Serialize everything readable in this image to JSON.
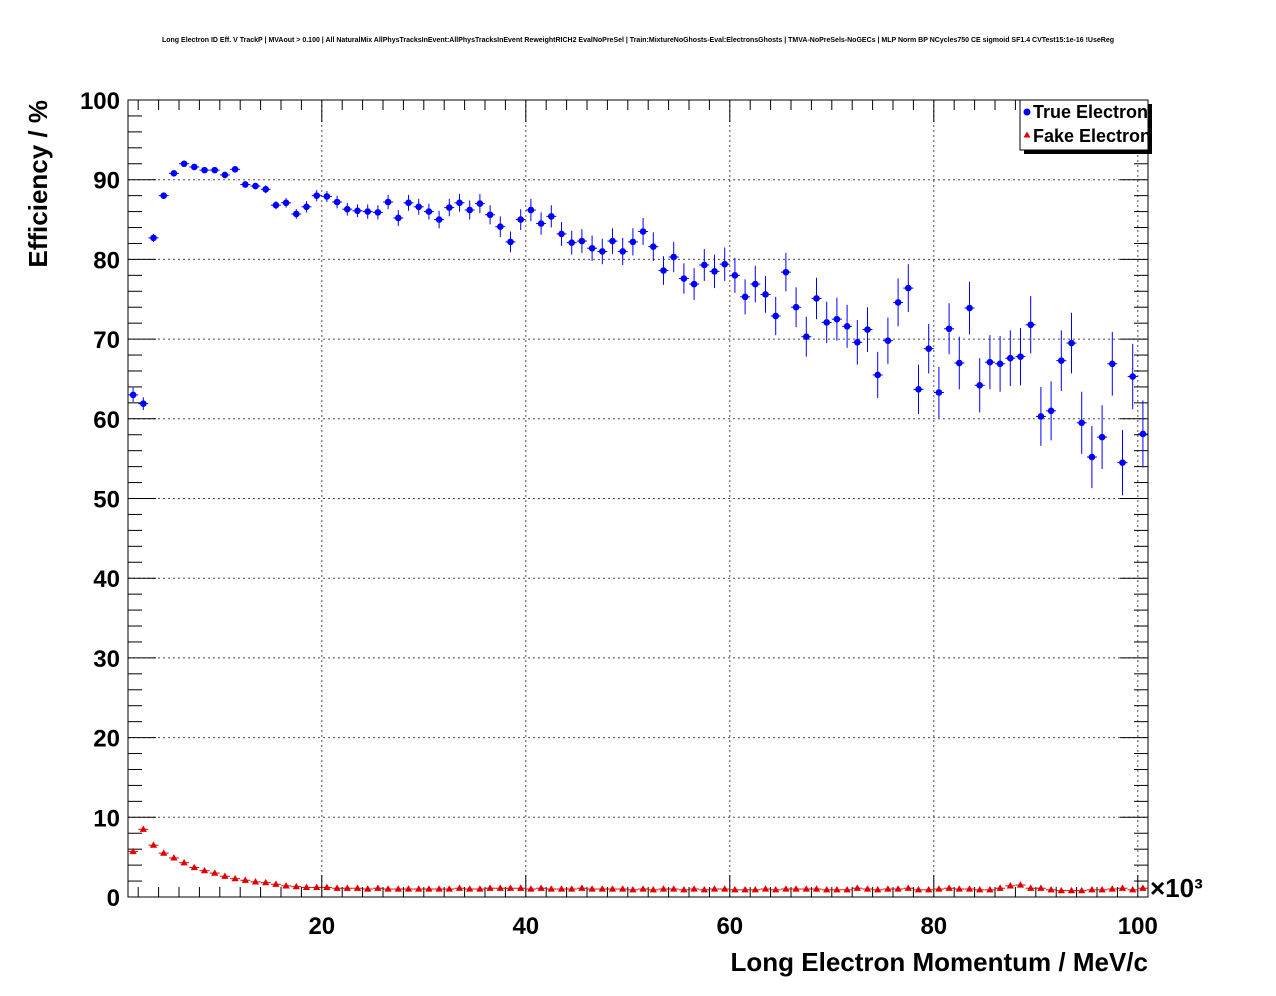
{
  "chart_data": {
    "type": "scatter",
    "title": "Long Electron ID Eff. V TrackP | MVAout > 0.100 | All NaturalMix AllPhysTracksInEvent:AllPhysTracksInEvent ReweightRICH2 EvalNoPreSel | Train:MixtureNoGhosts-Eval:ElectronsGhosts | TMVA-NoPreSels-NoGECs | MLP Norm BP NCycles750 CE sigmoid SF1.4 CVTest15:1e-16 !UseReg",
    "xlabel": "Long Electron Momentum / MeV/c",
    "ylabel": "Efficiency / %",
    "x_multiplier": "×10³",
    "xlim": [
      1,
      101
    ],
    "ylim": [
      0,
      100
    ],
    "x_ticks": [
      20,
      40,
      60,
      80,
      100
    ],
    "y_ticks": [
      0,
      10,
      20,
      30,
      40,
      50,
      60,
      70,
      80,
      90,
      100
    ],
    "grid": true,
    "legend_position": "top-right",
    "series": [
      {
        "name": "True Electron",
        "color": "#0000ff",
        "marker": "circle",
        "x": [
          1.5,
          2.5,
          3.5,
          4.5,
          5.5,
          6.5,
          7.5,
          8.5,
          9.5,
          10.5,
          11.5,
          12.5,
          13.5,
          14.5,
          15.5,
          16.5,
          17.5,
          18.5,
          19.5,
          20.5,
          21.5,
          22.5,
          23.5,
          24.5,
          25.5,
          26.5,
          27.5,
          28.5,
          29.5,
          30.5,
          31.5,
          32.5,
          33.5,
          34.5,
          35.5,
          36.5,
          37.5,
          38.5,
          39.5,
          40.5,
          41.5,
          42.5,
          43.5,
          44.5,
          45.5,
          46.5,
          47.5,
          48.5,
          49.5,
          50.5,
          51.5,
          52.5,
          53.5,
          54.5,
          55.5,
          56.5,
          57.5,
          58.5,
          59.5,
          60.5,
          61.5,
          62.5,
          63.5,
          64.5,
          65.5,
          66.5,
          67.5,
          68.5,
          69.5,
          70.5,
          71.5,
          72.5,
          73.5,
          74.5,
          75.5,
          76.5,
          77.5,
          78.5,
          79.5,
          80.5,
          81.5,
          82.5,
          83.5,
          84.5,
          85.5,
          86.5,
          87.5,
          88.5,
          89.5,
          90.5,
          91.5,
          92.5,
          93.5,
          94.5,
          95.5,
          96.5,
          97.5,
          98.5,
          99.5,
          100.5
        ],
        "y": [
          63.0,
          61.9,
          82.7,
          88.0,
          90.8,
          92.0,
          91.6,
          91.2,
          91.2,
          90.6,
          91.3,
          89.4,
          89.2,
          88.8,
          86.8,
          87.1,
          85.7,
          86.6,
          88.0,
          87.9,
          87.2,
          86.3,
          86.1,
          86.0,
          85.9,
          87.2,
          85.2,
          87.1,
          86.6,
          86.0,
          85.0,
          86.5,
          87.1,
          86.2,
          87.0,
          85.6,
          84.1,
          82.2,
          85.0,
          86.2,
          84.5,
          85.4,
          83.2,
          82.1,
          82.3,
          81.4,
          81.0,
          82.3,
          81.0,
          82.2,
          83.5,
          81.6,
          78.6,
          80.3,
          77.6,
          76.9,
          79.3,
          78.5,
          79.4,
          78.0,
          75.3,
          76.9,
          75.6,
          72.9,
          78.4,
          74.0,
          70.3,
          75.1,
          72.1,
          72.5,
          71.6,
          69.6,
          71.2,
          65.5,
          69.8,
          74.6,
          76.4,
          63.7,
          68.8,
          63.3,
          71.3,
          67.0,
          73.9,
          64.2,
          67.1,
          66.9,
          67.6,
          67.8,
          71.8,
          60.3,
          61.0,
          67.3,
          69.5,
          59.5,
          55.2,
          57.7,
          66.9,
          54.5,
          65.3,
          58.1
        ],
        "err": [
          0.9,
          0.8,
          0.5,
          0.4,
          0.3,
          0.3,
          0.3,
          0.3,
          0.3,
          0.3,
          0.4,
          0.4,
          0.4,
          0.5,
          0.5,
          0.6,
          0.6,
          0.7,
          0.7,
          0.7,
          0.8,
          0.8,
          0.8,
          0.9,
          0.9,
          0.9,
          1.0,
          1.0,
          1.0,
          1.0,
          1.1,
          1.1,
          1.1,
          1.2,
          1.2,
          1.2,
          1.3,
          1.3,
          1.3,
          1.4,
          1.4,
          1.4,
          1.5,
          1.5,
          1.5,
          1.6,
          1.6,
          1.6,
          1.7,
          1.7,
          1.7,
          1.8,
          1.8,
          1.9,
          1.9,
          2.0,
          2.0,
          2.1,
          2.1,
          2.2,
          2.2,
          2.3,
          2.3,
          2.4,
          2.4,
          2.5,
          2.5,
          2.6,
          2.6,
          2.7,
          2.7,
          2.8,
          2.8,
          2.9,
          2.9,
          3.0,
          3.0,
          3.1,
          3.1,
          3.2,
          3.2,
          3.3,
          3.3,
          3.4,
          3.4,
          3.5,
          3.5,
          3.6,
          3.6,
          3.7,
          3.7,
          3.8,
          3.8,
          3.9,
          3.9,
          4.0,
          4.0,
          4.1,
          4.1,
          4.2
        ]
      },
      {
        "name": "Fake Electron",
        "color": "#e00000",
        "marker": "triangle",
        "x": [
          1.5,
          2.5,
          3.5,
          4.5,
          5.5,
          6.5,
          7.5,
          8.5,
          9.5,
          10.5,
          11.5,
          12.5,
          13.5,
          14.5,
          15.5,
          16.5,
          17.5,
          18.5,
          19.5,
          20.5,
          21.5,
          22.5,
          23.5,
          24.5,
          25.5,
          26.5,
          27.5,
          28.5,
          29.5,
          30.5,
          31.5,
          32.5,
          33.5,
          34.5,
          35.5,
          36.5,
          37.5,
          38.5,
          39.5,
          40.5,
          41.5,
          42.5,
          43.5,
          44.5,
          45.5,
          46.5,
          47.5,
          48.5,
          49.5,
          50.5,
          51.5,
          52.5,
          53.5,
          54.5,
          55.5,
          56.5,
          57.5,
          58.5,
          59.5,
          60.5,
          61.5,
          62.5,
          63.5,
          64.5,
          65.5,
          66.5,
          67.5,
          68.5,
          69.5,
          70.5,
          71.5,
          72.5,
          73.5,
          74.5,
          75.5,
          76.5,
          77.5,
          78.5,
          79.5,
          80.5,
          81.5,
          82.5,
          83.5,
          84.5,
          85.5,
          86.5,
          87.5,
          88.5,
          89.5,
          90.5,
          91.5,
          92.5,
          93.5,
          94.5,
          95.5,
          96.5,
          97.5,
          98.5,
          99.5,
          100.5
        ],
        "y": [
          5.7,
          8.5,
          6.5,
          5.5,
          4.9,
          4.3,
          3.7,
          3.3,
          3.0,
          2.6,
          2.3,
          2.1,
          1.9,
          1.8,
          1.6,
          1.4,
          1.3,
          1.2,
          1.2,
          1.2,
          1.1,
          1.1,
          1.1,
          1.0,
          1.1,
          1.0,
          1.0,
          1.0,
          1.0,
          1.0,
          1.0,
          1.0,
          1.1,
          1.0,
          1.0,
          1.1,
          1.1,
          1.1,
          1.1,
          1.0,
          1.1,
          1.0,
          1.0,
          1.0,
          1.1,
          1.0,
          1.0,
          1.0,
          1.0,
          0.9,
          1.0,
          0.9,
          1.0,
          1.0,
          0.9,
          1.0,
          0.9,
          1.0,
          1.0,
          0.9,
          0.9,
          0.9,
          1.0,
          0.9,
          1.0,
          1.0,
          1.0,
          1.0,
          0.9,
          0.9,
          0.9,
          1.1,
          1.0,
          0.9,
          1.0,
          1.0,
          1.1,
          0.9,
          0.9,
          1.0,
          1.1,
          1.0,
          1.0,
          0.9,
          0.9,
          1.1,
          1.4,
          1.5,
          1.1,
          1.1,
          0.9,
          0.8,
          0.8,
          0.8,
          0.9,
          0.9,
          1.0,
          1.1,
          0.9,
          1.1
        ]
      }
    ]
  }
}
